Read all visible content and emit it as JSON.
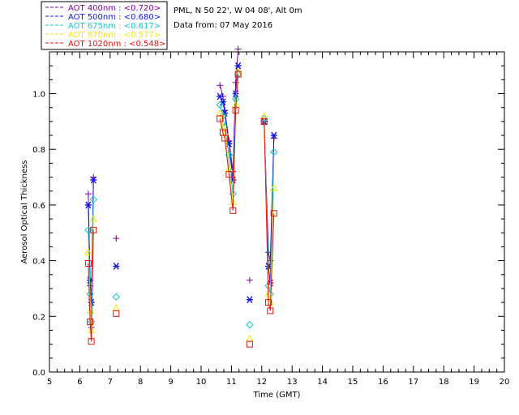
{
  "info": {
    "site": "PML, N 50 22', W 04 08', Alt 0m",
    "date": "Data from: 07 May 2016"
  },
  "chart_data": {
    "type": "scatter",
    "title": "",
    "xlabel": "Time (GMT)",
    "ylabel": "Aerosol Optical Thickness",
    "xlim": [
      5,
      20
    ],
    "ylim": [
      0,
      1.15
    ],
    "xticks": [
      5,
      6,
      7,
      8,
      9,
      10,
      11,
      12,
      13,
      14,
      15,
      16,
      17,
      18,
      19,
      20
    ],
    "yticks": [
      0.0,
      0.2,
      0.4,
      0.6,
      0.8,
      1.0
    ],
    "ytick_labels": [
      "0.0",
      "0.2",
      "0.4",
      "0.6",
      "0.8",
      "1.0"
    ],
    "grid": false,
    "legend_placement": "top-left",
    "series": [
      {
        "name": "AOT  400nm : <0.720>",
        "color": "#8000a0",
        "marker": "plus",
        "points": [
          [
            6.28,
            0.64
          ],
          [
            6.34,
            0.31
          ],
          [
            6.38,
            0.16
          ],
          [
            6.45,
            0.7
          ],
          [
            7.2,
            0.48
          ],
          [
            10.62,
            1.03
          ],
          [
            10.72,
            0.99
          ],
          [
            10.78,
            0.94
          ],
          [
            10.92,
            0.83
          ],
          [
            11.05,
            0.72
          ],
          [
            11.14,
            1.04
          ],
          [
            11.22,
            1.16
          ],
          [
            11.6,
            0.33
          ],
          [
            12.08,
            0.89
          ],
          [
            12.22,
            0.43
          ],
          [
            12.28,
            0.4
          ],
          [
            12.4,
            0.84
          ]
        ],
        "gaps_after": [
          3,
          4,
          11,
          12
        ]
      },
      {
        "name": "AOT  500nm : <0.680>",
        "color": "#1414dc",
        "marker": "asterisk",
        "points": [
          [
            6.28,
            0.6
          ],
          [
            6.34,
            0.33
          ],
          [
            6.38,
            0.25
          ],
          [
            6.45,
            0.69
          ],
          [
            7.2,
            0.38
          ],
          [
            10.62,
            0.99
          ],
          [
            10.72,
            0.97
          ],
          [
            10.78,
            0.93
          ],
          [
            10.92,
            0.82
          ],
          [
            11.05,
            0.69
          ],
          [
            11.14,
            1.0
          ],
          [
            11.22,
            1.1
          ],
          [
            11.6,
            0.26
          ],
          [
            12.08,
            0.9
          ],
          [
            12.22,
            0.38
          ],
          [
            12.28,
            0.32
          ],
          [
            12.4,
            0.85
          ]
        ],
        "gaps_after": [
          3,
          4,
          11,
          12
        ]
      },
      {
        "name": "AOT  675nm : <0.617>",
        "color": "#14c8c8",
        "marker": "diamond",
        "points": [
          [
            6.28,
            0.51
          ],
          [
            6.34,
            0.28
          ],
          [
            6.38,
            0.18
          ],
          [
            6.45,
            0.62
          ],
          [
            7.2,
            0.27
          ],
          [
            10.62,
            0.96
          ],
          [
            10.72,
            0.92
          ],
          [
            10.78,
            0.88
          ],
          [
            10.92,
            0.78
          ],
          [
            11.05,
            0.64
          ],
          [
            11.14,
            0.98
          ],
          [
            11.22,
            1.07
          ],
          [
            11.6,
            0.17
          ],
          [
            12.08,
            0.91
          ],
          [
            12.22,
            0.31
          ],
          [
            12.28,
            0.28
          ],
          [
            12.4,
            0.79
          ]
        ],
        "gaps_after": [
          3,
          4,
          11,
          12
        ]
      },
      {
        "name": "AOT  870nm : <0.577>",
        "color": "#f0e614",
        "marker": "triangle",
        "points": [
          [
            6.28,
            0.43
          ],
          [
            6.34,
            0.22
          ],
          [
            6.38,
            0.15
          ],
          [
            6.45,
            0.55
          ],
          [
            7.2,
            0.23
          ],
          [
            10.62,
            0.93
          ],
          [
            10.72,
            0.88
          ],
          [
            10.78,
            0.86
          ],
          [
            10.92,
            0.73
          ],
          [
            11.05,
            0.61
          ],
          [
            11.14,
            0.96
          ],
          [
            11.22,
            1.08
          ],
          [
            11.6,
            0.12
          ],
          [
            12.08,
            0.92
          ],
          [
            12.22,
            0.28
          ],
          [
            12.28,
            0.25
          ],
          [
            12.4,
            0.66
          ]
        ],
        "gaps_after": [
          3,
          4,
          11,
          12
        ]
      },
      {
        "name": "AOT 1020nm : <0.548>",
        "color": "#e01414",
        "marker": "square",
        "points": [
          [
            6.28,
            0.39
          ],
          [
            6.34,
            0.18
          ],
          [
            6.38,
            0.11
          ],
          [
            6.45,
            0.51
          ],
          [
            7.2,
            0.21
          ],
          [
            10.62,
            0.91
          ],
          [
            10.72,
            0.86
          ],
          [
            10.78,
            0.84
          ],
          [
            10.92,
            0.71
          ],
          [
            11.05,
            0.58
          ],
          [
            11.14,
            0.94
          ],
          [
            11.22,
            1.07
          ],
          [
            11.6,
            0.1
          ],
          [
            12.08,
            0.9
          ],
          [
            12.22,
            0.25
          ],
          [
            12.28,
            0.22
          ],
          [
            12.4,
            0.57
          ]
        ],
        "gaps_after": [
          3,
          4,
          11,
          12
        ]
      }
    ]
  }
}
